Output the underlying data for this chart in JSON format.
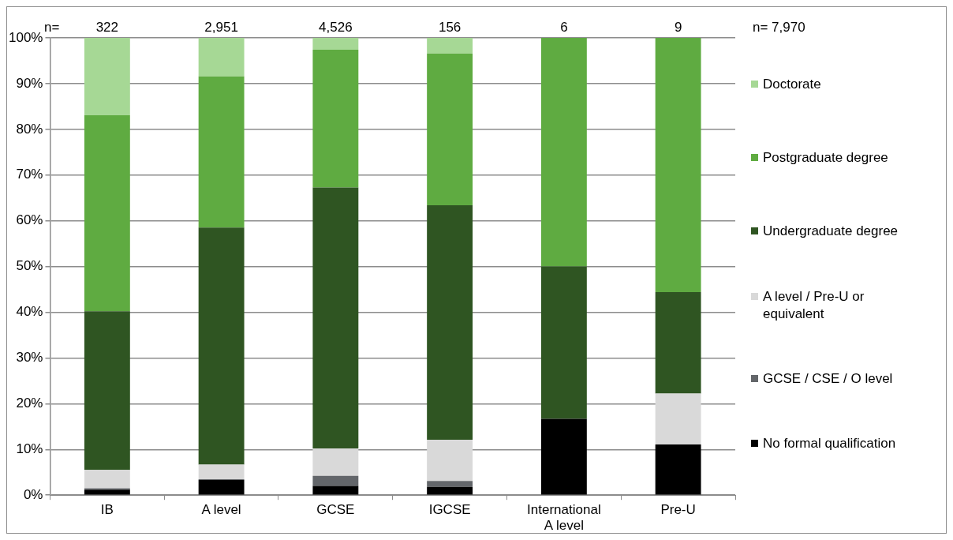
{
  "chart_data": {
    "type": "bar",
    "stacked": true,
    "categories": [
      "IB",
      "A level",
      "GCSE",
      "IGCSE",
      "International A level",
      "Pre-U"
    ],
    "series": [
      {
        "name": "No formal qualification",
        "color": "#000000",
        "values": [
          1.2,
          3.3,
          2.0,
          1.8,
          16.7,
          11.1
        ]
      },
      {
        "name": "GCSE / CSE / O level",
        "color": "#63666a",
        "values": [
          0.3,
          0.2,
          2.2,
          1.3,
          0,
          0
        ]
      },
      {
        "name": "A level / Pre-U or equivalent",
        "color": "#d9d9d9",
        "values": [
          4.0,
          3.2,
          6.0,
          9.0,
          0,
          11.1
        ]
      },
      {
        "name": "Undergraduate degree",
        "color": "#2f5522",
        "values": [
          34.7,
          51.8,
          57.1,
          51.3,
          33.3,
          22.2
        ]
      },
      {
        "name": "Postgraduate degree",
        "color": "#5fab41",
        "values": [
          42.9,
          33.1,
          30.1,
          33.2,
          50.0,
          55.6
        ]
      },
      {
        "name": "Doctorate",
        "color": "#a6d895",
        "values": [
          16.9,
          8.5,
          2.6,
          3.4,
          0,
          0
        ]
      }
    ],
    "ylim": [
      0,
      100
    ],
    "yticks": [
      {
        "value": 0,
        "label": "0%"
      },
      {
        "value": 10,
        "label": "10%"
      },
      {
        "value": 20,
        "label": "20%"
      },
      {
        "value": 30,
        "label": "30%"
      },
      {
        "value": 40,
        "label": "40%"
      },
      {
        "value": 50,
        "label": "50%"
      },
      {
        "value": 60,
        "label": "60%"
      },
      {
        "value": 70,
        "label": "70%"
      },
      {
        "value": 80,
        "label": "80%"
      },
      {
        "value": 90,
        "label": "90%"
      },
      {
        "value": 100,
        "label": "100%"
      }
    ],
    "grid": "y",
    "legend": "right",
    "annotations": [
      "n=",
      {
        "text": "322",
        "x": "IB",
        "y": 100
      },
      {
        "text": "2,951",
        "x": "A level",
        "y": 100
      },
      {
        "text": "4,526",
        "x": "GCSE",
        "y": 100
      },
      {
        "text": "156",
        "x": "IGCSE",
        "y": 100
      },
      {
        "text": "6",
        "x": "International A level",
        "y": 100
      },
      {
        "text": "9",
        "x": "Pre-U",
        "y": 100
      },
      "n= 7,970"
    ]
  }
}
